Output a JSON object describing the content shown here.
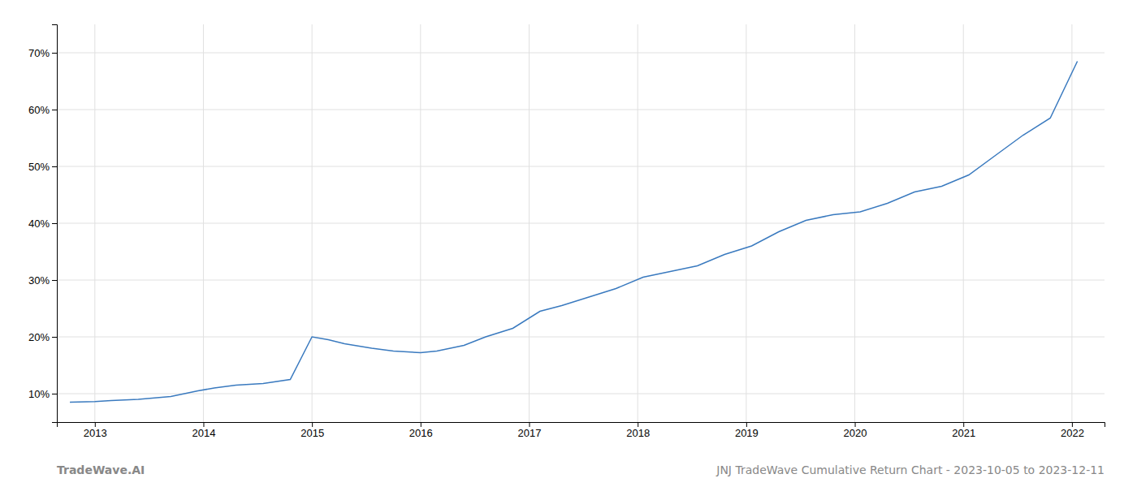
{
  "chart_data": {
    "type": "line",
    "x": [
      2012.77,
      2013.0,
      2013.15,
      2013.4,
      2013.7,
      2013.95,
      2014.1,
      2014.3,
      2014.55,
      2014.8,
      2015.0,
      2015.15,
      2015.3,
      2015.55,
      2015.75,
      2016.0,
      2016.15,
      2016.4,
      2016.6,
      2016.85,
      2017.1,
      2017.3,
      2017.55,
      2017.8,
      2018.05,
      2018.3,
      2018.55,
      2018.8,
      2019.05,
      2019.3,
      2019.55,
      2019.8,
      2020.05,
      2020.3,
      2020.55,
      2020.8,
      2021.05,
      2021.3,
      2021.55,
      2021.8,
      2022.05
    ],
    "values": [
      8.5,
      8.6,
      8.8,
      9.0,
      9.5,
      10.5,
      11.0,
      11.5,
      11.8,
      12.5,
      20.0,
      19.5,
      18.8,
      18.0,
      17.5,
      17.2,
      17.5,
      18.5,
      20.0,
      21.5,
      24.5,
      25.5,
      27.0,
      28.5,
      30.5,
      31.5,
      32.5,
      34.5,
      36.0,
      38.5,
      40.5,
      41.5,
      42.0,
      43.5,
      45.5,
      46.5,
      48.5,
      52.0,
      55.5,
      58.5,
      68.5
    ],
    "color": "#3a7abf",
    "xlim": [
      2012.65,
      2022.3
    ],
    "xticks": [
      2013,
      2014,
      2015,
      2016,
      2017,
      2018,
      2019,
      2020,
      2021,
      2022
    ],
    "ylim": [
      5.0,
      75.0
    ],
    "yticks": [
      {
        "value": 10,
        "label": "10%"
      },
      {
        "value": 20,
        "label": "20%"
      },
      {
        "value": 30,
        "label": "30%"
      },
      {
        "value": 40,
        "label": "40%"
      },
      {
        "value": 50,
        "label": "50%"
      },
      {
        "value": 60,
        "label": "60%"
      },
      {
        "value": 70,
        "label": "70%"
      }
    ],
    "grid": true,
    "annotations": [
      "TradeWave.AI",
      "JNJ TradeWave Cumulative Return Chart - 2023-10-05 to 2023-12-11"
    ]
  }
}
